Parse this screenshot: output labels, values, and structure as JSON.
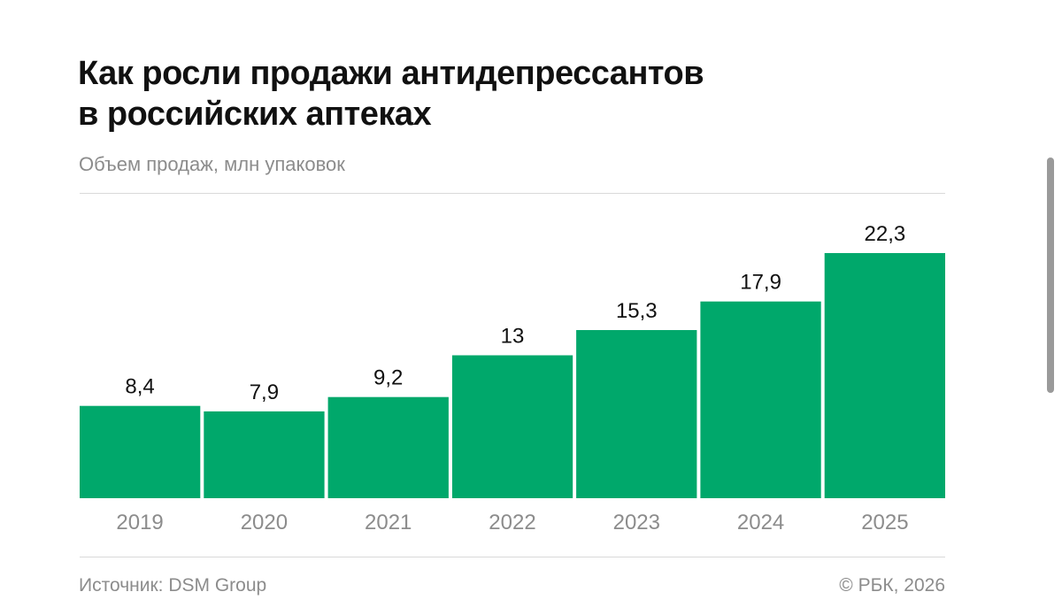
{
  "header": {
    "title_line1": "Как росли продажи антидепрессантов",
    "title_line2": "в российских аптеках",
    "subtitle": "Объем продаж, млн упаковок"
  },
  "footer": {
    "source": "Источник: DSM Group",
    "copyright": "© РБК, 2026"
  },
  "colors": {
    "bar": "#00a86b",
    "text": "#111111",
    "muted": "#8c8c8c",
    "rule": "#d9d9d9"
  },
  "chart_data": {
    "type": "bar",
    "title": "Как росли продажи антидепрессантов в российских аптеках",
    "subtitle": "Объем продаж, млн упаковок",
    "xlabel": "",
    "ylabel": "",
    "categories": [
      "2019",
      "2020",
      "2021",
      "2022",
      "2023",
      "2024",
      "2025"
    ],
    "values": [
      8.4,
      7.9,
      9.2,
      13,
      15.3,
      17.9,
      22.3
    ],
    "value_labels": [
      "8,4",
      "7,9",
      "9,2",
      "13",
      "15,3",
      "17,9",
      "22,3"
    ],
    "ylim": [
      0,
      22.3
    ],
    "grid": false,
    "legend": "none"
  }
}
